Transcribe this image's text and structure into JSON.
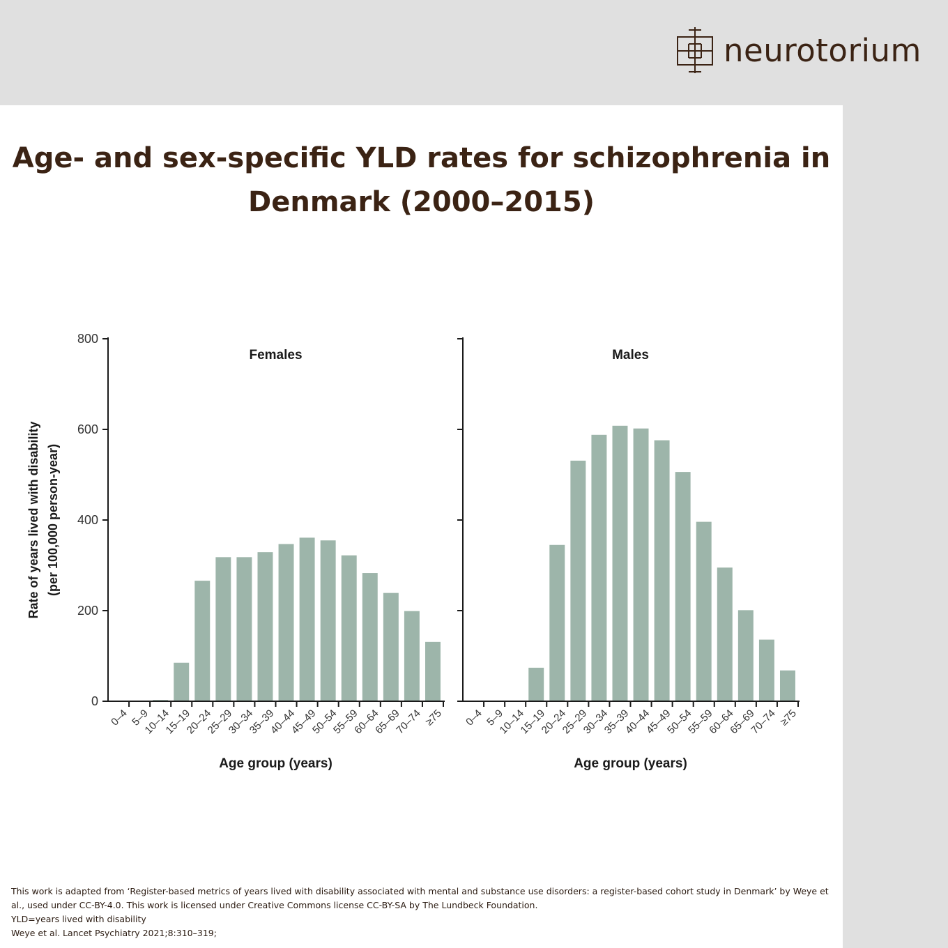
{
  "brand": {
    "name": "neurotorium",
    "logo_icon": "neurotorium-logo-icon",
    "color": "#3b2314"
  },
  "title": {
    "line1": "Age- and sex-specific YLD rates for schizophrenia in",
    "line2": "Denmark (2000–2015)"
  },
  "chart_data": {
    "type": "bar",
    "ylabel_line1": "Rate of years lived with disability",
    "ylabel_line2": "(per 100,000 person-year)",
    "xlabel": "Age group (years)",
    "ylim": [
      0,
      800
    ],
    "yticks": [
      0,
      200,
      400,
      600,
      800
    ],
    "grid": false,
    "bar_color": "#9db5aa",
    "categories": [
      "0–4",
      "5–9",
      "10–14",
      "15–19",
      "20–24",
      "25–29",
      "30–34",
      "35–39",
      "40–44",
      "45–49",
      "50–54",
      "55–59",
      "60–64",
      "65–69",
      "70–74",
      "≥75"
    ],
    "panels": [
      {
        "name": "Females",
        "values": [
          0,
          0,
          3,
          85,
          266,
          318,
          318,
          329,
          347,
          361,
          355,
          322,
          283,
          239,
          199,
          131
        ]
      },
      {
        "name": "Males",
        "values": [
          0,
          0,
          0,
          74,
          345,
          531,
          588,
          608,
          602,
          576,
          506,
          396,
          295,
          201,
          136,
          68
        ]
      }
    ]
  },
  "footer": {
    "line1": "This work is adapted from ‘Register-based metrics of years lived with disability associated with mental and substance use disorders: a register-based cohort study in Denmark’ by Weye et al., used under CC-BY-4.0. This work is licensed under Creative Commons license CC-BY-SA by The Lundbeck Foundation.",
    "line2": "YLD=years lived with disability",
    "line3": "Weye et al. Lancet Psychiatry 2021;8:310–319;"
  }
}
